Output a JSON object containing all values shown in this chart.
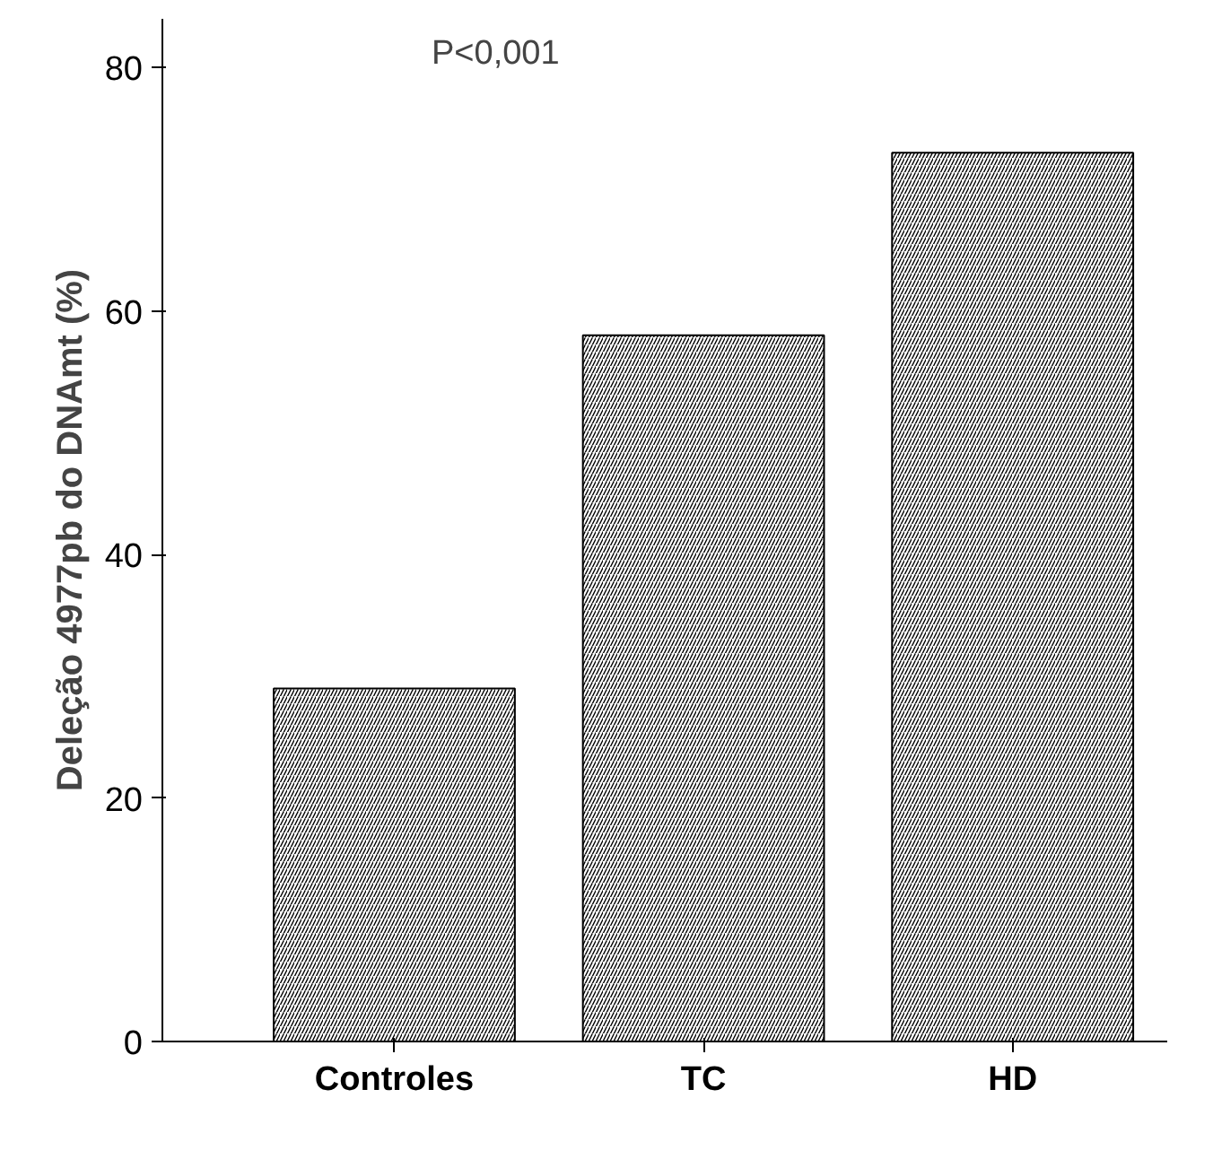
{
  "chart_data": {
    "type": "bar",
    "ylabel": "Deleção 4977pb do DNAmt (%)",
    "categories": [
      "Controles",
      "TC",
      "HD"
    ],
    "values": [
      29,
      58,
      73
    ],
    "color": "#000000",
    "ylim": [
      0,
      84
    ],
    "yticks": [
      0,
      20,
      40,
      60,
      80
    ],
    "grid": false,
    "annotations": [
      "P<0,001"
    ]
  }
}
